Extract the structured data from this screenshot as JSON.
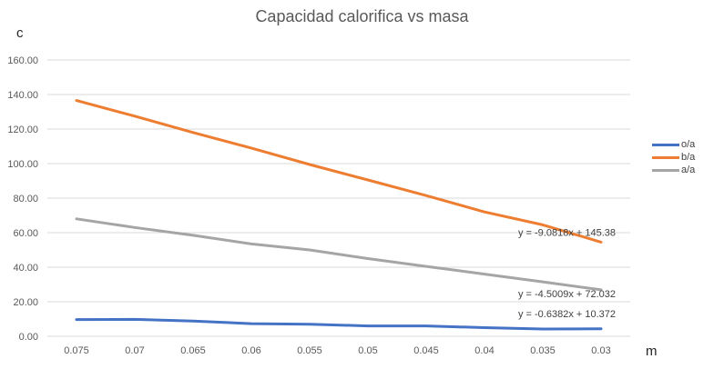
{
  "chart_data": {
    "type": "line",
    "title": "Capacidad calorifica vs masa",
    "xlabel": "m",
    "ylabel": "c",
    "categories": [
      "0.075",
      "0.07",
      "0.065",
      "0.06",
      "0.055",
      "0.05",
      "0.045",
      "0.04",
      "0.035",
      "0.03"
    ],
    "y_ticks": [
      "0.00",
      "20.00",
      "40.00",
      "60.00",
      "80.00",
      "100.00",
      "120.00",
      "140.00",
      "160.00"
    ],
    "ylim": [
      0,
      160
    ],
    "grid": true,
    "legend_position": "right",
    "series": [
      {
        "name": "o/a",
        "color": "#4472C4",
        "values": [
          9.7,
          9.8,
          8.8,
          7.3,
          7.0,
          6.0,
          6.0,
          5.0,
          4.2,
          4.3
        ]
      },
      {
        "name": "b/a",
        "color": "#ED7D31",
        "values": [
          136.5,
          127.5,
          118.0,
          109.0,
          99.5,
          90.5,
          81.5,
          72.0,
          64.5,
          54.5
        ]
      },
      {
        "name": "a/a",
        "color": "#A5A5A5",
        "values": [
          68.0,
          63.0,
          58.5,
          53.5,
          50.0,
          45.0,
          40.5,
          36.0,
          31.5,
          26.9
        ]
      }
    ],
    "annotations": [
      {
        "text": "y = -9.0818x + 145.38"
      },
      {
        "text": "y = -4.5009x + 72.032"
      },
      {
        "text": "y = -0.6382x + 10.372"
      }
    ]
  }
}
